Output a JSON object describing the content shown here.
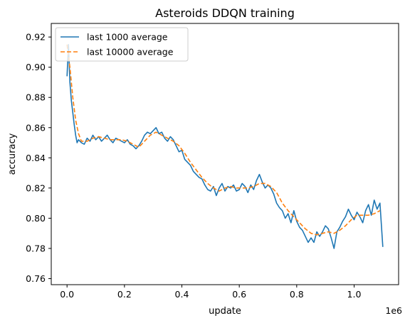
{
  "chart_data": {
    "type": "line",
    "title": "Asteroids DDQN training",
    "xlabel": "update",
    "ylabel": "accuracy",
    "x_offset_label": "1e6",
    "xlim": [
      -0.055,
      1.155
    ],
    "ylim": [
      0.756,
      0.929
    ],
    "xticks": [
      0.0,
      0.2,
      0.4,
      0.6,
      0.8,
      1.0
    ],
    "xtick_labels": [
      "0.0",
      "0.2",
      "0.4",
      "0.6",
      "0.8",
      "1.0"
    ],
    "yticks": [
      0.76,
      0.78,
      0.8,
      0.82,
      0.84,
      0.86,
      0.88,
      0.9,
      0.92
    ],
    "ytick_labels": [
      "0.76",
      "0.78",
      "0.80",
      "0.82",
      "0.84",
      "0.86",
      "0.88",
      "0.90",
      "0.92"
    ],
    "grid": false,
    "legend_position": "top-left",
    "colors": {
      "series1": "#1f77b4",
      "series2": "#ff7f0e"
    },
    "series": [
      {
        "name": "last 1000 average",
        "style": "solid",
        "x": [
          0.0,
          0.005,
          0.01,
          0.015,
          0.02,
          0.025,
          0.03,
          0.035,
          0.04,
          0.05,
          0.06,
          0.07,
          0.08,
          0.09,
          0.1,
          0.11,
          0.12,
          0.13,
          0.14,
          0.15,
          0.16,
          0.17,
          0.18,
          0.19,
          0.2,
          0.21,
          0.22,
          0.23,
          0.24,
          0.25,
          0.26,
          0.27,
          0.28,
          0.29,
          0.3,
          0.31,
          0.32,
          0.33,
          0.34,
          0.35,
          0.36,
          0.37,
          0.38,
          0.39,
          0.4,
          0.41,
          0.42,
          0.43,
          0.44,
          0.45,
          0.46,
          0.47,
          0.48,
          0.49,
          0.5,
          0.51,
          0.52,
          0.53,
          0.54,
          0.55,
          0.56,
          0.57,
          0.58,
          0.59,
          0.6,
          0.61,
          0.62,
          0.63,
          0.64,
          0.65,
          0.66,
          0.67,
          0.68,
          0.69,
          0.7,
          0.71,
          0.72,
          0.73,
          0.74,
          0.75,
          0.76,
          0.77,
          0.78,
          0.79,
          0.8,
          0.81,
          0.82,
          0.83,
          0.84,
          0.85,
          0.86,
          0.87,
          0.88,
          0.89,
          0.9,
          0.91,
          0.92,
          0.93,
          0.94,
          0.95,
          0.96,
          0.97,
          0.98,
          0.99,
          1.0,
          1.01,
          1.02,
          1.03,
          1.04,
          1.05,
          1.06,
          1.07,
          1.08,
          1.09,
          1.1
        ],
        "values": [
          0.894,
          0.915,
          0.89,
          0.878,
          0.87,
          0.862,
          0.855,
          0.85,
          0.852,
          0.85,
          0.849,
          0.853,
          0.851,
          0.855,
          0.852,
          0.854,
          0.851,
          0.853,
          0.855,
          0.852,
          0.85,
          0.853,
          0.852,
          0.851,
          0.85,
          0.852,
          0.849,
          0.848,
          0.846,
          0.848,
          0.851,
          0.855,
          0.857,
          0.856,
          0.858,
          0.86,
          0.856,
          0.857,
          0.853,
          0.851,
          0.854,
          0.852,
          0.848,
          0.844,
          0.845,
          0.839,
          0.837,
          0.835,
          0.831,
          0.829,
          0.827,
          0.826,
          0.822,
          0.819,
          0.818,
          0.821,
          0.815,
          0.82,
          0.823,
          0.818,
          0.821,
          0.82,
          0.822,
          0.818,
          0.819,
          0.823,
          0.821,
          0.817,
          0.822,
          0.819,
          0.825,
          0.829,
          0.824,
          0.82,
          0.822,
          0.82,
          0.816,
          0.81,
          0.807,
          0.805,
          0.8,
          0.803,
          0.797,
          0.805,
          0.798,
          0.794,
          0.792,
          0.788,
          0.784,
          0.787,
          0.784,
          0.791,
          0.788,
          0.791,
          0.795,
          0.793,
          0.787,
          0.78,
          0.791,
          0.794,
          0.798,
          0.801,
          0.806,
          0.802,
          0.799,
          0.804,
          0.801,
          0.797,
          0.805,
          0.809,
          0.802,
          0.812,
          0.806,
          0.81,
          0.781
        ]
      },
      {
        "name": "last 10000 average",
        "style": "dashed",
        "x": [
          0.0,
          0.01,
          0.02,
          0.03,
          0.04,
          0.05,
          0.07,
          0.09,
          0.11,
          0.13,
          0.15,
          0.17,
          0.19,
          0.21,
          0.23,
          0.25,
          0.27,
          0.29,
          0.31,
          0.33,
          0.35,
          0.37,
          0.39,
          0.41,
          0.43,
          0.45,
          0.47,
          0.49,
          0.51,
          0.53,
          0.55,
          0.57,
          0.59,
          0.61,
          0.63,
          0.65,
          0.67,
          0.69,
          0.71,
          0.73,
          0.75,
          0.77,
          0.79,
          0.81,
          0.83,
          0.85,
          0.87,
          0.89,
          0.91,
          0.93,
          0.95,
          0.97,
          0.99,
          1.01,
          1.03,
          1.05,
          1.07,
          1.09
        ],
        "values": [
          0.915,
          0.9,
          0.88,
          0.865,
          0.856,
          0.851,
          0.851,
          0.853,
          0.854,
          0.853,
          0.852,
          0.852,
          0.852,
          0.851,
          0.849,
          0.847,
          0.851,
          0.855,
          0.857,
          0.855,
          0.853,
          0.851,
          0.848,
          0.843,
          0.837,
          0.832,
          0.827,
          0.823,
          0.82,
          0.818,
          0.82,
          0.821,
          0.82,
          0.82,
          0.82,
          0.821,
          0.823,
          0.823,
          0.821,
          0.817,
          0.81,
          0.805,
          0.801,
          0.797,
          0.793,
          0.79,
          0.789,
          0.79,
          0.791,
          0.79,
          0.792,
          0.795,
          0.799,
          0.802,
          0.802,
          0.802,
          0.803,
          0.805
        ]
      }
    ]
  }
}
